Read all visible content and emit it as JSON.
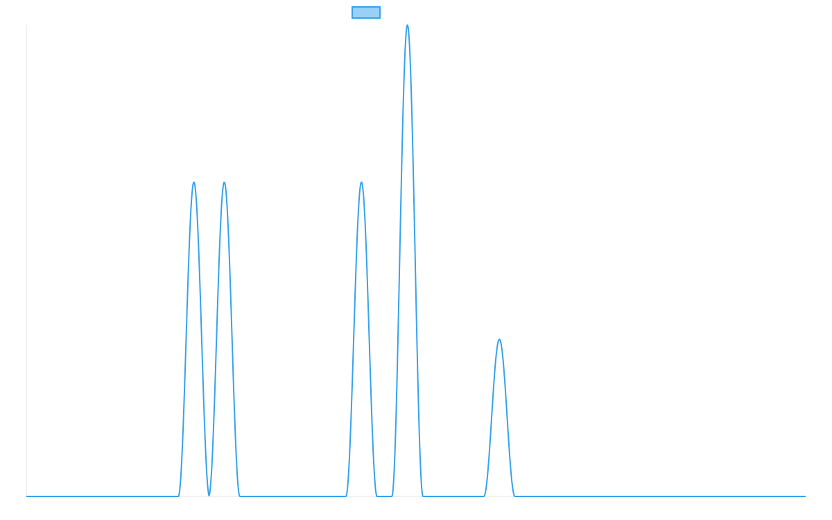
{
  "chart_data": {
    "type": "line",
    "title": "",
    "xlabel": "",
    "ylabel": "",
    "xlim": [
      0,
      100
    ],
    "ylim": [
      0,
      3
    ],
    "grid": false,
    "legend_position": "top",
    "series": [
      {
        "color": "#36a2eb",
        "fill": "#9ad0f5",
        "peaks": [
          {
            "x": 21.5,
            "height": 2,
            "width": 2
          },
          {
            "x": 25.4,
            "height": 2,
            "width": 2
          },
          {
            "x": 43.0,
            "height": 2,
            "width": 2
          },
          {
            "x": 48.9,
            "height": 3,
            "width": 2
          },
          {
            "x": 60.7,
            "height": 1,
            "width": 2
          }
        ]
      }
    ]
  }
}
